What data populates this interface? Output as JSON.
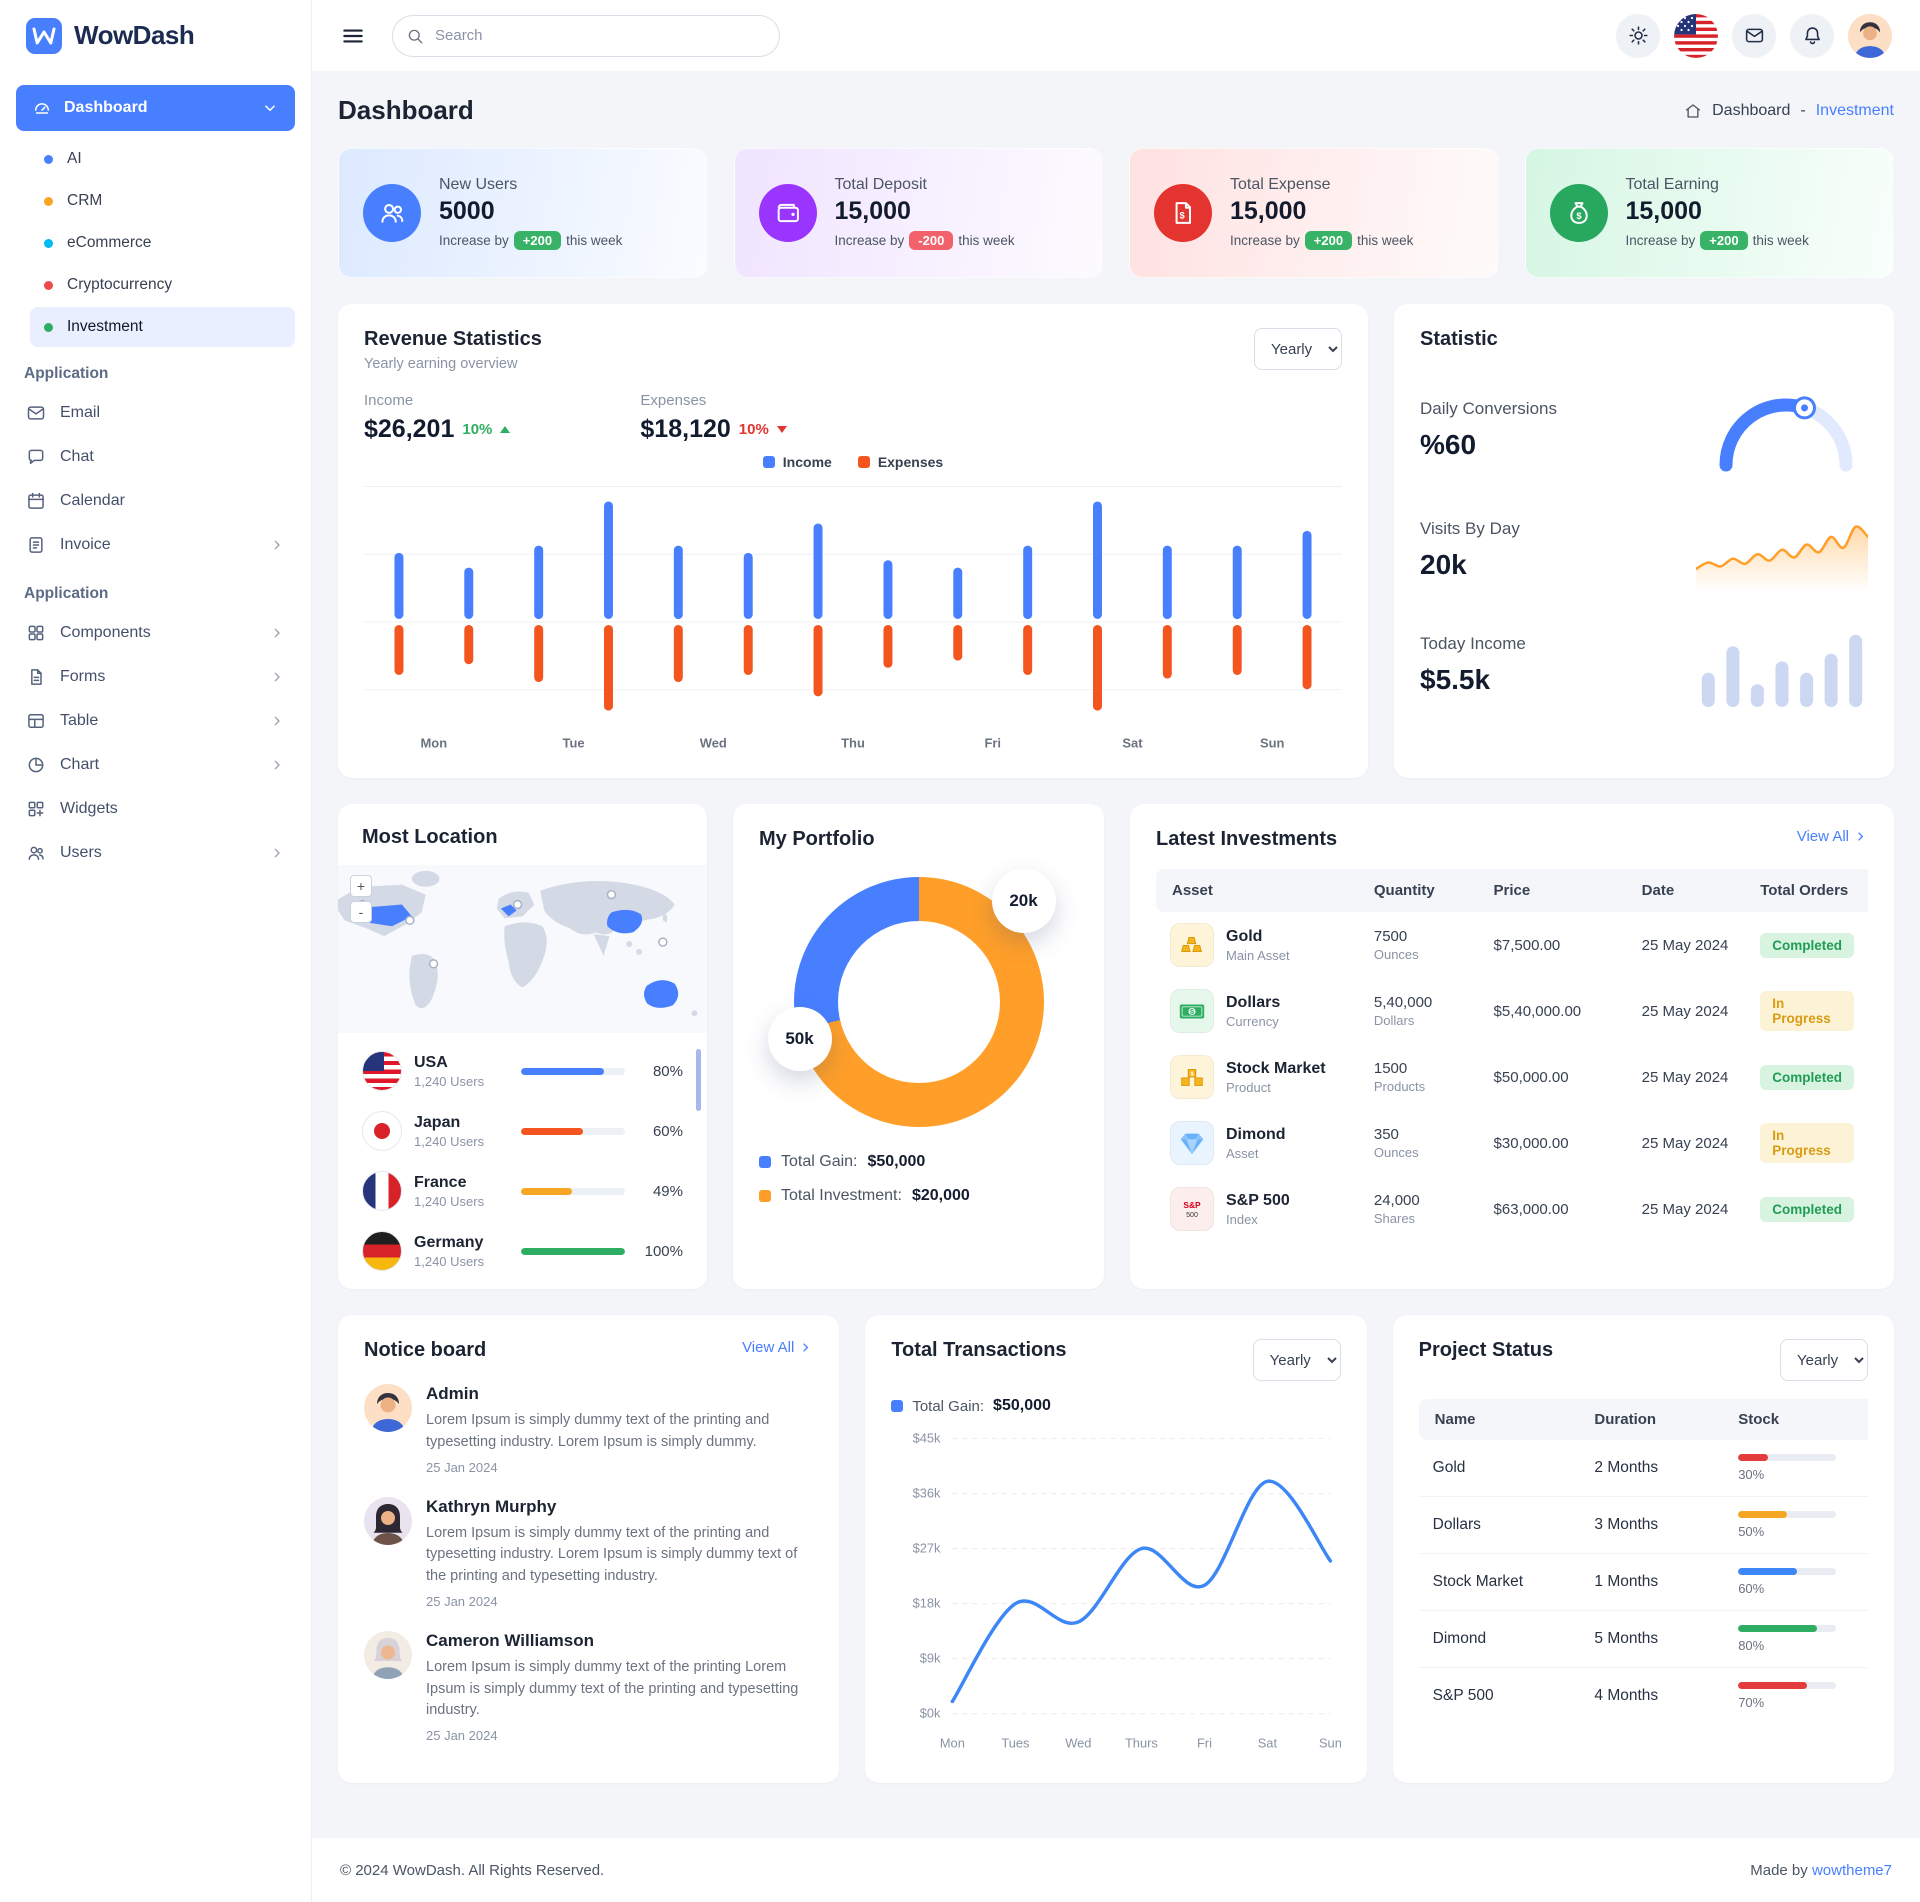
{
  "app": {
    "name": "WowDash"
  },
  "topbar": {
    "search_placeholder": "Search"
  },
  "page": {
    "title": "Dashboard",
    "breadcrumb_home": "Dashboard",
    "breadcrumb_sep": "-",
    "breadcrumb_current": "Investment"
  },
  "sidebar": {
    "dashboard_label": "Dashboard",
    "dashboard_items": [
      {
        "label": "AI",
        "dot": "#487fff",
        "state": ""
      },
      {
        "label": "CRM",
        "dot": "#f6a623",
        "state": ""
      },
      {
        "label": "eCommerce",
        "dot": "#00b8f2",
        "state": ""
      },
      {
        "label": "Cryptocurrency",
        "dot": "#ef4a4a",
        "state": ""
      },
      {
        "label": "Investment",
        "dot": "#2fae63",
        "state": "active"
      }
    ],
    "section1_title": "Application",
    "section1_items": [
      {
        "label": "Email",
        "icon": "#i-mail",
        "chevron": false
      },
      {
        "label": "Chat",
        "icon": "#i-chat",
        "chevron": false
      },
      {
        "label": "Calendar",
        "icon": "#i-calendar",
        "chevron": false
      },
      {
        "label": "Invoice",
        "icon": "#i-invoice",
        "chevron": true
      }
    ],
    "section2_title": "Application",
    "section2_items": [
      {
        "label": "Components",
        "icon": "#i-components",
        "chevron": true
      },
      {
        "label": "Forms",
        "icon": "#i-forms",
        "chevron": true
      },
      {
        "label": "Table",
        "icon": "#i-table",
        "chevron": true
      },
      {
        "label": "Chart",
        "icon": "#i-chart",
        "chevron": true
      },
      {
        "label": "Widgets",
        "icon": "#i-widgets",
        "chevron": false
      },
      {
        "label": "Users",
        "icon": "#i-users",
        "chevron": true
      }
    ]
  },
  "stats": [
    {
      "label": "New Users",
      "value": "5000",
      "prefix": "Increase by",
      "badge": "+200",
      "suffix": "this week",
      "badge_key": "success",
      "gradient": "linear-gradient(100deg,#dce9ff 0%,#fafcff 100%)",
      "icon_bg": "#487fff",
      "icon": "#s-users"
    },
    {
      "label": "Total Deposit",
      "value": "15,000",
      "prefix": "Increase by",
      "badge": "-200",
      "suffix": "this week",
      "badge_key": "danger",
      "gradient": "linear-gradient(100deg,#f0e4ff 0%,#fdfbff 100%)",
      "icon_bg": "#9935ff",
      "icon": "#s-wallet"
    },
    {
      "label": "Total Expense",
      "value": "15,000",
      "prefix": "Increase by",
      "badge": "+200",
      "suffix": "this week",
      "badge_key": "success",
      "gradient": "linear-gradient(100deg,#ffe1e1 0%,#fffbfb 100%)",
      "icon_bg": "#e4342f",
      "icon": "#s-file"
    },
    {
      "label": "Total Earning",
      "value": "15,000",
      "prefix": "Increase by",
      "badge": "+200",
      "suffix": "this week",
      "badge_key": "success",
      "gradient": "linear-gradient(100deg,#d5f6e3 0%,#f9fffc 100%)",
      "icon_bg": "#28a75f",
      "icon": "#s-bag"
    }
  ],
  "revenue": {
    "title": "Revenue Statistics",
    "subtitle": "Yearly earning overview",
    "select": "Yearly",
    "metrics": [
      {
        "label": "Income",
        "value": "$26,201",
        "change": "10%",
        "dir": "up",
        "color": "#2fae63"
      },
      {
        "label": "Expenses",
        "value": "$18,120",
        "change": "10%",
        "dir": "down",
        "color": "#e4342f"
      }
    ],
    "legend": [
      {
        "label": "Income",
        "color": "#487fff"
      },
      {
        "label": "Expenses",
        "color": "#f4541d"
      }
    ]
  },
  "statistic": {
    "title": "Statistic",
    "items": [
      {
        "label": "Daily Conversions",
        "value": "%60"
      },
      {
        "label": "Visits By Day",
        "value": "20k"
      },
      {
        "label": "Today Income",
        "value": "$5.5k"
      }
    ]
  },
  "locations": {
    "title": "Most Location",
    "zoom_in": "+",
    "zoom_out": "-",
    "countries": [
      {
        "name": "USA",
        "users": "1,240 Users",
        "percent": "80%",
        "color": "#487fff",
        "flag": "usa"
      },
      {
        "name": "Japan",
        "users": "1,240 Users",
        "percent": "60%",
        "color": "#f4541d",
        "flag": "japan"
      },
      {
        "name": "France",
        "users": "1,240 Users",
        "percent": "49%",
        "color": "#f6a623",
        "flag": "france"
      },
      {
        "name": "Germany",
        "users": "1,240 Users",
        "percent": "100%",
        "color": "#2fae63",
        "flag": "germany"
      }
    ]
  },
  "portfolio": {
    "title": "My Portfolio",
    "badge_top": "20k",
    "badge_side": "50k",
    "legend": [
      {
        "label": "Total Gain:",
        "value": "$50,000",
        "color": "#487fff"
      },
      {
        "label": "Total Investment:",
        "value": "$20,000",
        "color": "#ff9f29"
      }
    ]
  },
  "investments": {
    "title": "Latest Investments",
    "view_all": "View All",
    "columns": [
      "Asset",
      "Quantity",
      "Price",
      "Date",
      "Total Orders"
    ],
    "rows": [
      {
        "name": "Gold",
        "type": "Main Asset",
        "qty": "7500",
        "unit": "Ounces",
        "price": "$7,500.00",
        "date": "25 May 2024",
        "status": "Completed",
        "status_key": "completed",
        "icon": "#a-gold",
        "icon_bg": "#fdf4da"
      },
      {
        "name": "Dollars",
        "type": "Currency",
        "qty": "5,40,000",
        "unit": "Dollars",
        "price": "$5,40,000.00",
        "date": "25 May 2024",
        "status": "In Progress",
        "status_key": "progress",
        "icon": "#a-dollars",
        "icon_bg": "#e6f7ec"
      },
      {
        "name": "Stock Market",
        "type": "Product",
        "qty": "1500",
        "unit": "Products",
        "price": "$50,000.00",
        "date": "25 May 2024",
        "status": "Completed",
        "status_key": "completed",
        "icon": "#a-stock",
        "icon_bg": "#fdf4da"
      },
      {
        "name": "Dimond",
        "type": "Asset",
        "qty": "350",
        "unit": "Ounces",
        "price": "$30,000.00",
        "date": "25 May 2024",
        "status": "In Progress",
        "status_key": "progress",
        "icon": "#a-diamond",
        "icon_bg": "#eaf4fe"
      },
      {
        "name": "S&P 500",
        "type": "Index",
        "qty": "24,000",
        "unit": "Shares",
        "price": "$63,000.00",
        "date": "25 May 2024",
        "status": "Completed",
        "status_key": "completed",
        "icon": "#a-sp",
        "icon_bg": "#fdeeee"
      }
    ]
  },
  "notice": {
    "title": "Notice board",
    "view_all": "View All",
    "items": [
      {
        "name": "Admin",
        "text": "Lorem Ipsum is simply dummy text of the printing and typesetting industry. Lorem Ipsum is simply dummy.",
        "date": "25 Jan 2024",
        "avatar": "#av-1"
      },
      {
        "name": "Kathryn Murphy",
        "text": "Lorem Ipsum is simply dummy text of the printing and typesetting industry. Lorem Ipsum is simply dummy text of the printing and typesetting industry.",
        "date": "25 Jan 2024",
        "avatar": "#av-2"
      },
      {
        "name": "Cameron Williamson",
        "text": "Lorem Ipsum is simply dummy text of the printing Lorem Ipsum is simply dummy text of the printing and typesetting industry.",
        "date": "25 Jan 2024",
        "avatar": "#av-3"
      }
    ]
  },
  "transactions": {
    "title": "Total Transactions",
    "select": "Yearly",
    "legend_label": "Total Gain:",
    "legend_value": "$50,000",
    "legend_color": "#487fff"
  },
  "project": {
    "title": "Project Status",
    "select": "Yearly",
    "columns": [
      "Name",
      "Duration",
      "Stock"
    ],
    "rows": [
      {
        "name": "Gold",
        "duration": "2 Months",
        "percent": "30%",
        "color": "#e23c3c"
      },
      {
        "name": "Dollars",
        "duration": "3 Months",
        "percent": "50%",
        "color": "#f6a623"
      },
      {
        "name": "Stock Market",
        "duration": "1 Months",
        "percent": "60%",
        "color": "#3d86f6"
      },
      {
        "name": "Dimond",
        "duration": "5 Months",
        "percent": "80%",
        "color": "#2fae63"
      },
      {
        "name": "S&P 500",
        "duration": "4 Months",
        "percent": "70%",
        "color": "#e23c3c"
      }
    ]
  },
  "footer": {
    "copyright": "© 2024 WowDash. All Rights Reserved.",
    "made_by": "Made by",
    "brand": "wowtheme7"
  },
  "chart_data": [
    {
      "name": "revenue_statistics",
      "type": "bar",
      "title": "Revenue Statistics",
      "days": [
        "Mon",
        "Tue",
        "Wed",
        "Thu",
        "Fri",
        "Sat",
        "Sun"
      ],
      "bars_per_day": 2,
      "series": [
        {
          "name": "Income",
          "color": "#487fff",
          "values": [
            9,
            7,
            10,
            16,
            10,
            9,
            13,
            8,
            7,
            10,
            16,
            10,
            10,
            12
          ]
        },
        {
          "name": "Expenses",
          "color": "#f4541d",
          "values": [
            7,
            5.5,
            8,
            12,
            8,
            7,
            10,
            6,
            5,
            7,
            12,
            7.5,
            7,
            9
          ]
        }
      ],
      "income_total": "$26,201",
      "expenses_total": "$18,120",
      "grid": true
    },
    {
      "name": "daily_conversions",
      "type": "pie",
      "value": 60,
      "max": 100,
      "label": "%60",
      "color": "#487fff",
      "track": "#e1e9ff"
    },
    {
      "name": "visits_by_day",
      "type": "area",
      "label": "20k",
      "color": "#ff9f29",
      "values": [
        22,
        32,
        26,
        38,
        30,
        45,
        35,
        52,
        40,
        60,
        48,
        72,
        55,
        88,
        72
      ]
    },
    {
      "name": "today_income",
      "type": "bar",
      "label": "$5.5k",
      "color": "#ccd7f2",
      "values": [
        45,
        80,
        30,
        60,
        45,
        70,
        95
      ]
    },
    {
      "name": "my_portfolio",
      "type": "pie",
      "slices": [
        {
          "label": "50k",
          "value": 50000,
          "color": "#ff9f29"
        },
        {
          "label": "20k",
          "value": 20000,
          "color": "#487fff"
        }
      ],
      "legend": [
        {
          "label": "Total Gain",
          "value": 50000
        },
        {
          "label": "Total Investment",
          "value": 20000
        }
      ]
    },
    {
      "name": "total_transactions",
      "type": "line",
      "color": "#3d86f6",
      "x": [
        "Mon",
        "Tues",
        "Wed",
        "Thurs",
        "Fri",
        "Sat",
        "Sun"
      ],
      "values_k": [
        2,
        18,
        15,
        27,
        21,
        38,
        25
      ],
      "yticks": [
        "$45k",
        "$36k",
        "$27k",
        "$18k",
        "$9k",
        "$0k"
      ],
      "ylim_k": [
        0,
        45
      ],
      "grid": "dashed"
    },
    {
      "name": "most_location_users",
      "type": "bar",
      "categories": [
        "USA",
        "Japan",
        "France",
        "Germany"
      ],
      "values": [
        80,
        60,
        49,
        100
      ]
    },
    {
      "name": "project_status_stock",
      "type": "bar",
      "categories": [
        "Gold",
        "Dollars",
        "Stock Market",
        "Dimond",
        "S&P 500"
      ],
      "values": [
        30,
        50,
        60,
        80,
        70
      ]
    }
  ]
}
